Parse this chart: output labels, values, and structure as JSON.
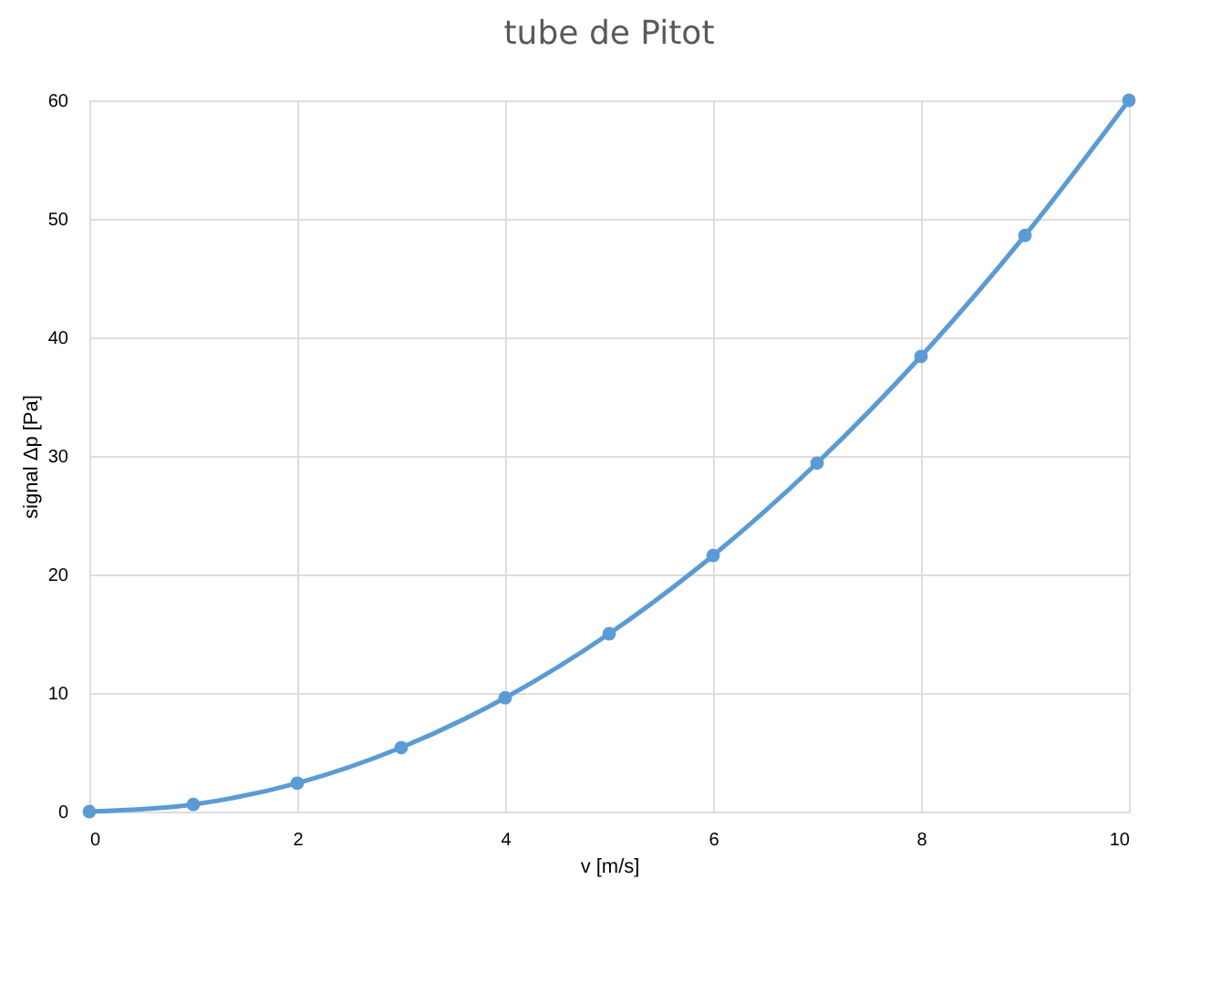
{
  "chart_data": {
    "type": "line",
    "title": "tube de Pitot",
    "xlabel": "v [m/s]",
    "ylabel": "signal Δp [Pa]",
    "x": [
      0,
      1,
      2,
      3,
      4,
      5,
      6,
      7,
      8,
      9,
      10
    ],
    "series": [
      {
        "color": "#5b9bd5",
        "values": [
          0,
          0.6,
          2.4,
          5.4,
          9.6,
          15,
          21.6,
          29.4,
          38.4,
          48.6,
          60
        ]
      }
    ],
    "xlim": [
      0,
      10
    ],
    "xticks": [
      0,
      2,
      4,
      6,
      8,
      10
    ],
    "ylim": [
      0,
      60
    ],
    "yticks": [
      0,
      10,
      20,
      30,
      40,
      50,
      60
    ],
    "grid": true,
    "marker": "circle",
    "line_style": "solid"
  }
}
